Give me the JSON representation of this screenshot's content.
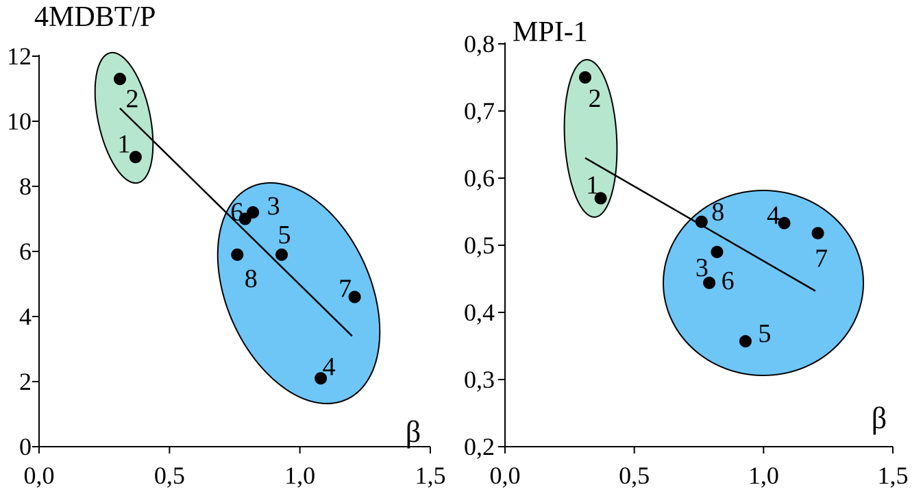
{
  "chart_data": [
    {
      "type": "scatter",
      "title": "",
      "ylabel": "4MDBT/P",
      "xlabel": "β",
      "xlim": [
        0.0,
        1.5
      ],
      "ylim": [
        0,
        12
      ],
      "xticks": [
        0.0,
        0.5,
        1.0,
        1.5
      ],
      "xtick_labels": [
        "0,0",
        "0,5",
        "1,0",
        "1,5"
      ],
      "yticks": [
        0,
        2,
        4,
        6,
        8,
        10,
        12
      ],
      "ytick_labels": [
        "0",
        "2",
        "4",
        "6",
        "8",
        "10",
        "12"
      ],
      "grid": false,
      "points": [
        {
          "label": "1",
          "x": 0.37,
          "y": 8.9
        },
        {
          "label": "2",
          "x": 0.31,
          "y": 11.3
        },
        {
          "label": "3",
          "x": 0.82,
          "y": 7.2
        },
        {
          "label": "4",
          "x": 1.08,
          "y": 2.1
        },
        {
          "label": "5",
          "x": 0.93,
          "y": 5.9
        },
        {
          "label": "6",
          "x": 0.79,
          "y": 7.0
        },
        {
          "label": "7",
          "x": 1.21,
          "y": 4.6
        },
        {
          "label": "8",
          "x": 0.76,
          "y": 5.9
        }
      ],
      "trend_line": {
        "x": [
          0.31,
          1.2
        ],
        "y": [
          10.4,
          3.4
        ]
      },
      "groups": [
        {
          "members": [
            "1",
            "2"
          ],
          "color": "#b7e6cf"
        },
        {
          "members": [
            "3",
            "4",
            "5",
            "6",
            "7",
            "8"
          ],
          "color": "#6ec6f7"
        }
      ]
    },
    {
      "type": "scatter",
      "title": "",
      "ylabel": "MPI-1",
      "xlabel": "β",
      "xlim": [
        0.0,
        1.5
      ],
      "ylim": [
        0.2,
        0.8
      ],
      "xticks": [
        0.0,
        0.5,
        1.0,
        1.5
      ],
      "xtick_labels": [
        "0,0",
        "0,5",
        "1,0",
        "1,5"
      ],
      "yticks": [
        0.2,
        0.3,
        0.4,
        0.5,
        0.6,
        0.7,
        0.8
      ],
      "ytick_labels": [
        "0,2",
        "0,3",
        "0,4",
        "0,5",
        "0,6",
        "0,7",
        "0,8"
      ],
      "grid": false,
      "points": [
        {
          "label": "1",
          "x": 0.37,
          "y": 0.57
        },
        {
          "label": "2",
          "x": 0.31,
          "y": 0.75
        },
        {
          "label": "3",
          "x": 0.82,
          "y": 0.49
        },
        {
          "label": "4",
          "x": 1.08,
          "y": 0.533
        },
        {
          "label": "5",
          "x": 0.93,
          "y": 0.357
        },
        {
          "label": "6",
          "x": 0.79,
          "y": 0.444
        },
        {
          "label": "7",
          "x": 1.21,
          "y": 0.518
        },
        {
          "label": "8",
          "x": 0.76,
          "y": 0.535
        }
      ],
      "trend_line": {
        "x": [
          0.31,
          1.2
        ],
        "y": [
          0.63,
          0.432
        ]
      },
      "groups": [
        {
          "members": [
            "1",
            "2"
          ],
          "color": "#b7e6cf"
        },
        {
          "members": [
            "3",
            "4",
            "5",
            "6",
            "7",
            "8"
          ],
          "color": "#6ec6f7"
        }
      ]
    }
  ]
}
